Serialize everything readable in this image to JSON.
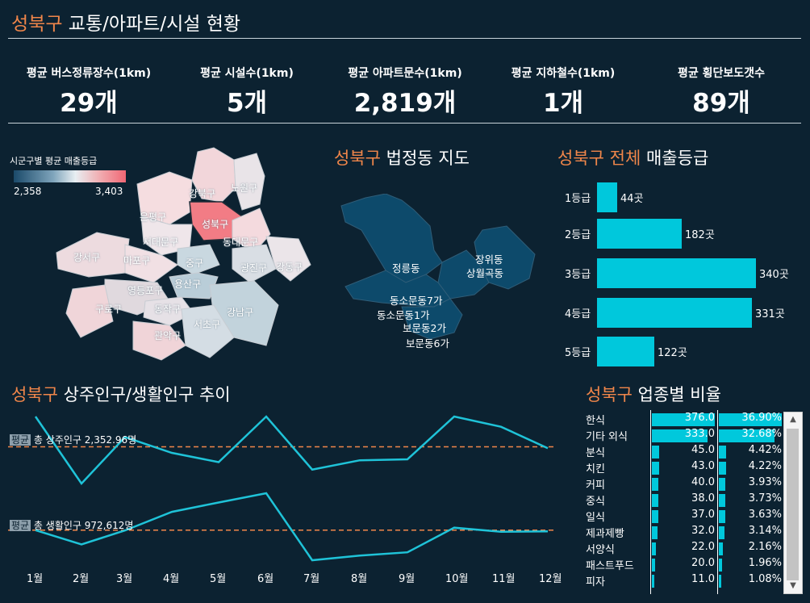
{
  "header": {
    "district": "성북구",
    "title_rest": "교통/아파트/시설 현황"
  },
  "kpis": [
    {
      "label": "평균 버스정류장수(1km)",
      "value": "29개"
    },
    {
      "label": "평균 시설수(1km)",
      "value": "5개"
    },
    {
      "label": "평균 아파트문수(1km)",
      "value": "2,819개"
    },
    {
      "label": "평균 지하철수(1km)",
      "value": "1개"
    },
    {
      "label": "평균 횡단보도갯수",
      "value": "89개"
    }
  ],
  "seoul_map": {
    "legend_title": "시군구별 평균 매출등급",
    "legend_min": "2,358",
    "legend_max": "3,403",
    "districts": [
      "강북구",
      "노원구",
      "은평구",
      "성북구",
      "서대문구",
      "동대문구",
      "강서구",
      "마포구",
      "중구",
      "광진구",
      "강동구",
      "용산구",
      "영등포구",
      "구로구",
      "동작구",
      "강남구",
      "서초구",
      "관악구"
    ]
  },
  "dong_map": {
    "title_district": "성북구",
    "title_rest": "법정동 지도",
    "labels": [
      "장위동",
      "상월곡동",
      "정릉동",
      "동소문동7가",
      "동소문동1가",
      "보문동2가",
      "보문동6가"
    ]
  },
  "grades": {
    "title_district": "성북구",
    "title_mid": "전체",
    "title_rest": "매출등급",
    "items": [
      {
        "grade": "1등급",
        "count": 44,
        "label": "44곳"
      },
      {
        "grade": "2등급",
        "count": 182,
        "label": "182곳"
      },
      {
        "grade": "3등급",
        "count": 340,
        "label": "340곳"
      },
      {
        "grade": "4등급",
        "count": 331,
        "label": "331곳"
      },
      {
        "grade": "5등급",
        "count": 122,
        "label": "122곳"
      }
    ]
  },
  "trend": {
    "title_district": "성북구",
    "title_rest": "상주인구/생활인구 추이",
    "months": [
      "1월",
      "2월",
      "3월",
      "4월",
      "5월",
      "6월",
      "7월",
      "8월",
      "9월",
      "10월",
      "11월",
      "12월"
    ],
    "avg_tag": "평균",
    "resident_avg_text": "총 상주인구 2,352.96명",
    "living_avg_text": "총 생활인구 972,612명",
    "line_color": "#1fc3d8",
    "avg_line_color": "#f0864a"
  },
  "chart_data": {
    "type": "line",
    "x": [
      "1월",
      "2월",
      "3월",
      "4월",
      "5월",
      "6월",
      "7월",
      "8월",
      "9월",
      "10월",
      "11월",
      "12월"
    ],
    "series": [
      {
        "name": "총 상주인구",
        "values": [
          2418,
          2274,
          2374,
          2340,
          2320,
          2418,
          2304,
          2324,
          2326,
          2418,
          2396,
          2350
        ],
        "avg": 2352.96
      },
      {
        "name": "총 생활인구",
        "values": [
          972612,
          942000,
          972000,
          1012000,
          1032000,
          1052000,
          908000,
          918000,
          925000,
          978000,
          969000,
          970000
        ],
        "avg": 972612
      }
    ]
  },
  "business": {
    "title_district": "성북구",
    "title_rest": "업종별 비율",
    "rows": [
      {
        "name": "한식",
        "count": "376.0",
        "pct": "36.90%",
        "count_value": 376,
        "pct_value": 36.9
      },
      {
        "name": "기타 외식",
        "count": "333.0",
        "pct": "32.68%",
        "count_value": 333,
        "pct_value": 32.68
      },
      {
        "name": "분식",
        "count": "45.0",
        "pct": "4.42%",
        "count_value": 45,
        "pct_value": 4.42
      },
      {
        "name": "치킨",
        "count": "43.0",
        "pct": "4.22%",
        "count_value": 43,
        "pct_value": 4.22
      },
      {
        "name": "커피",
        "count": "40.0",
        "pct": "3.93%",
        "count_value": 40,
        "pct_value": 3.93
      },
      {
        "name": "중식",
        "count": "38.0",
        "pct": "3.73%",
        "count_value": 38,
        "pct_value": 3.73
      },
      {
        "name": "일식",
        "count": "37.0",
        "pct": "3.63%",
        "count_value": 37,
        "pct_value": 3.63
      },
      {
        "name": "제과제빵",
        "count": "32.0",
        "pct": "3.14%",
        "count_value": 32,
        "pct_value": 3.14
      },
      {
        "name": "서양식",
        "count": "22.0",
        "pct": "2.16%",
        "count_value": 22,
        "pct_value": 2.16
      },
      {
        "name": "패스트푸드",
        "count": "20.0",
        "pct": "1.96%",
        "count_value": 20,
        "pct_value": 1.96
      },
      {
        "name": "피자",
        "count": "11.0",
        "pct": "1.08%",
        "count_value": 11,
        "pct_value": 1.08
      }
    ]
  },
  "scroll": {
    "up_icon": "chevron-up-icon",
    "down_icon": "chevron-down-icon"
  }
}
